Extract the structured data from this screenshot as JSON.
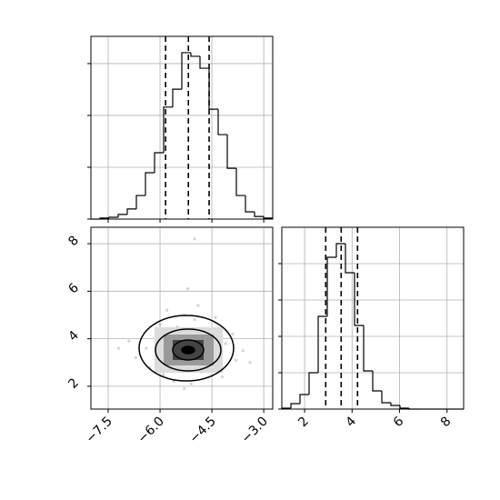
{
  "chart_data": [
    {
      "type": "histogram",
      "bins": [
        -8.0,
        -7.737,
        -7.474,
        -7.211,
        -6.948,
        -6.685,
        -6.422,
        -6.159,
        -5.896,
        -5.633,
        -5.37,
        -5.107,
        -4.844,
        -4.581,
        -4.318,
        -4.055,
        -3.792,
        -3.529,
        -3.266,
        -3.003,
        -2.74
      ],
      "values": [
        0,
        4,
        7,
        18,
        39,
        91,
        179,
        256,
        432,
        501,
        642,
        628,
        582,
        424,
        326,
        196,
        91,
        28,
        10,
        4
      ],
      "quantiles": [
        -5.84,
        -5.18,
        -4.58
      ],
      "xlim": [
        -8.0,
        -2.74
      ],
      "xticks": [
        -7.5,
        -6.0,
        -4.5,
        -3.0
      ],
      "ylim": [
        0,
        705
      ],
      "yticks": [
        0,
        200,
        400,
        600
      ],
      "grid": true,
      "color": "#000000"
    },
    {
      "type": "scatter",
      "x": [
        -5.2,
        -4.9,
        -5.5,
        -4.6,
        -5.8,
        -5.1,
        -4.3,
        -6.1,
        -5.0,
        -5.4,
        -4.7,
        -5.9,
        -4.4,
        -6.4,
        -5.3,
        -4.1,
        -5.6,
        -4.8,
        -6.7,
        -3.8,
        -5.0,
        -5.3,
        -4.5,
        -6.0,
        -4.9,
        -5.7,
        -3.6,
        -6.9,
        -5.2,
        -4.2,
        -5.5,
        -4.7,
        -6.3,
        -3.9,
        -5.1,
        -5.8,
        -4.4,
        -7.2,
        -3.4,
        -5.0
      ],
      "y": [
        3.5,
        3.2,
        3.8,
        3.6,
        3.0,
        4.2,
        3.4,
        3.9,
        2.8,
        3.3,
        4.4,
        2.5,
        3.0,
        3.6,
        5.0,
        3.8,
        2.2,
        2.6,
        3.2,
        3.1,
        4.8,
        1.9,
        3.9,
        4.6,
        5.4,
        3.5,
        3.5,
        3.9,
        6.1,
        2.4,
        4.5,
        3.1,
        2.8,
        4.2,
        2.1,
        5.2,
        4.9,
        3.6,
        3.0,
        8.2
      ],
      "xlim": [
        -8.0,
        -2.74
      ],
      "xticks": [
        {
          "value": -7.5,
          "label": "−7.5"
        },
        {
          "value": -6.0,
          "label": "−6.0"
        },
        {
          "value": -4.5,
          "label": "−4.5"
        },
        {
          "value": -3.0,
          "label": "−3.0"
        }
      ],
      "ylim": [
        1.04,
        8.69
      ],
      "yticks": [
        2,
        4,
        6,
        8
      ],
      "grid": true,
      "color": "#808080"
    },
    {
      "type": "histogram",
      "bins": [
        1.04,
        1.423,
        1.806,
        2.189,
        2.572,
        2.955,
        3.338,
        3.721,
        4.104,
        4.487,
        4.87,
        5.253,
        5.636,
        6.019,
        6.402,
        6.785,
        7.168,
        7.551,
        7.934,
        8.317,
        8.7
      ],
      "values": [
        5,
        30,
        80,
        200,
        510,
        835,
        910,
        750,
        460,
        210,
        100,
        35,
        20,
        5,
        0,
        0,
        0,
        0,
        0,
        0
      ],
      "quantiles": [
        2.89,
        3.54,
        4.23
      ],
      "xlim": [
        1.04,
        8.7
      ],
      "xticks": [
        2,
        4,
        6,
        8
      ],
      "ylim": [
        0,
        1000
      ],
      "yticks": [
        0,
        200,
        400,
        600,
        800
      ],
      "grid": true,
      "color": "#000000"
    }
  ]
}
